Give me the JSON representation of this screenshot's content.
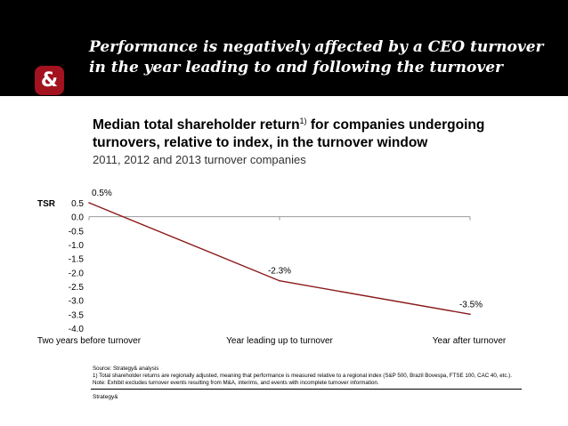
{
  "header": {
    "title_line1": "Performance is negatively affected by a CEO turnover",
    "title_line2": "in the year leading to and following the turnover",
    "logo_text": "&"
  },
  "subtitle": {
    "line1": "Median total shareholder return",
    "line1_sup": "1)",
    "line1_rest": " for companies undergoing",
    "line2": "turnovers, relative to index, in the turnover window",
    "line3": "2011, 2012 and 2013 turnover companies"
  },
  "chart_data": {
    "type": "line",
    "title": "Median total shareholder return relative to index",
    "ylabel": "TSR",
    "xlabel": "",
    "ylim": [
      -4.0,
      0.5
    ],
    "yticks": [
      "0.5",
      "0.0",
      "-0.5",
      "-1.0",
      "-1.5",
      "-2.0",
      "-2.5",
      "-3.0",
      "-3.5",
      "-4.0"
    ],
    "categories": [
      "Two years before turnover",
      "Year leading up to turnover",
      "Year after turnover"
    ],
    "series": [
      {
        "name": "TSR",
        "values": [
          0.5,
          -2.3,
          -3.5
        ],
        "labels": [
          "0.5%",
          "-2.3%",
          "-3.5%"
        ],
        "color": "#8b1a1a"
      }
    ],
    "grid": false
  },
  "footnotes": {
    "source": "Source: Strategy& analysis",
    "note1": "1) Total shareholder returns are regionally adjusted, meaning that performance is measured relative to a regional index (S&P 500, Brazil Bovespa, FTSE 100, CAC 40, etc.).",
    "note2": "Note: Exhibit excludes turnover events resulting from M&A, interims, and events with incomplete turnover information."
  },
  "brand": "Strategy&",
  "colors": {
    "header_bg": "#000000",
    "logo_bg": "#a3121f",
    "line": "#8b1a1a",
    "axis": "#999999"
  }
}
